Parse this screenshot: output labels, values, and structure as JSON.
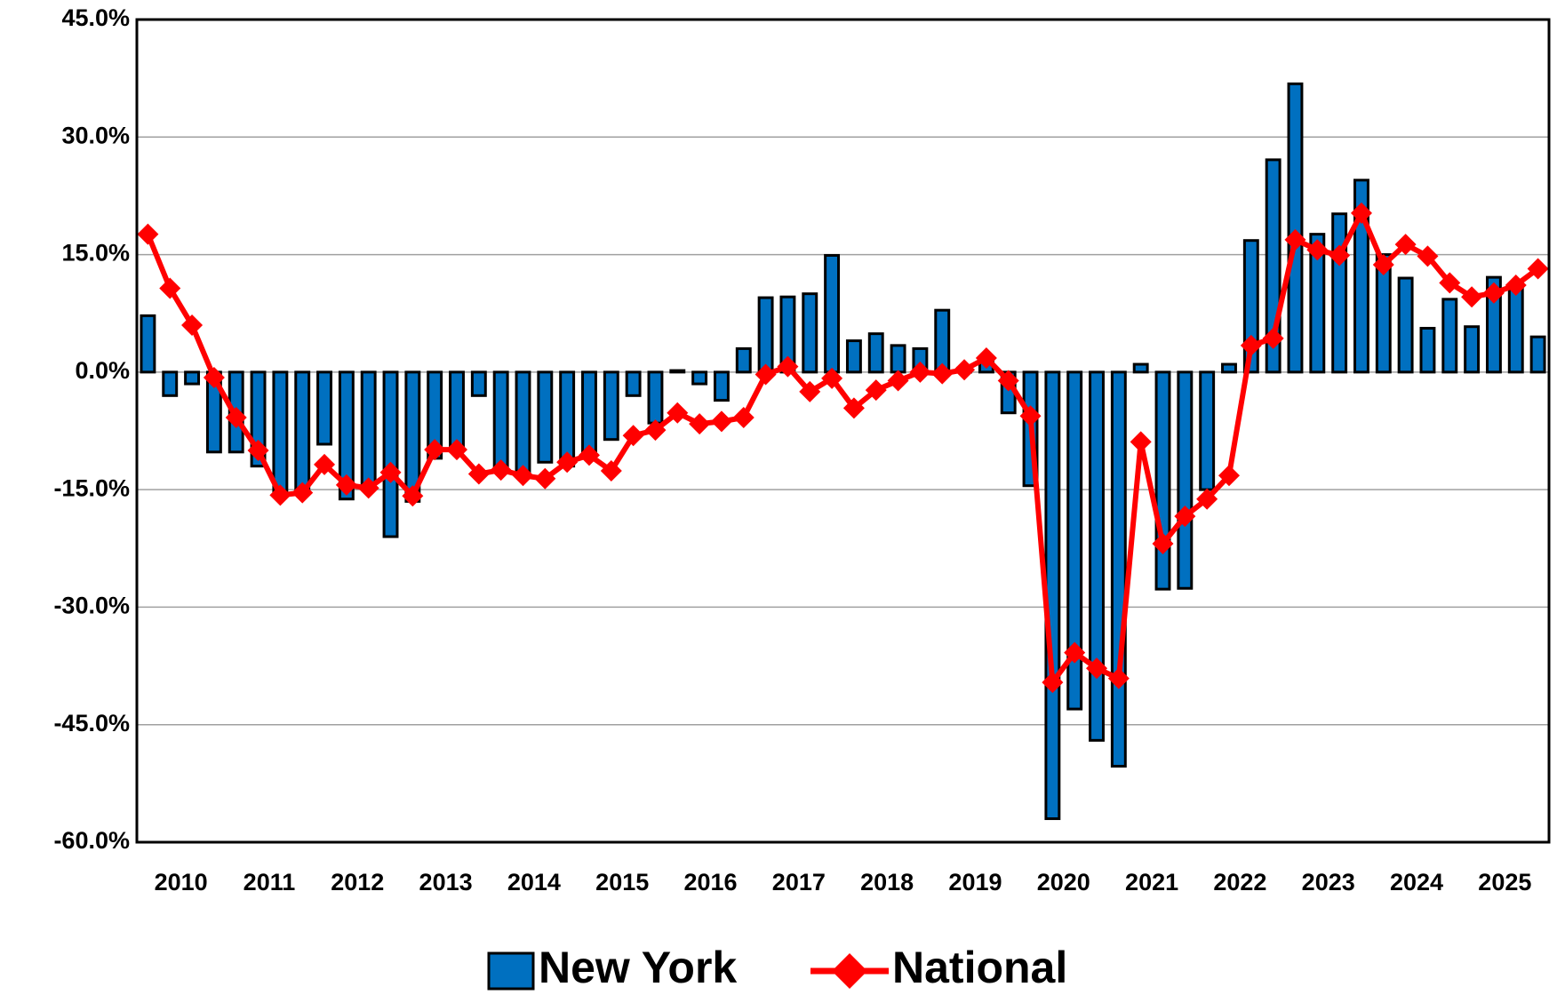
{
  "chart_data": {
    "type": "bar_line",
    "categories": [
      "2010",
      null,
      null,
      null,
      "2011",
      null,
      null,
      null,
      "2012",
      null,
      null,
      null,
      "2013",
      null,
      null,
      null,
      "2014",
      null,
      null,
      null,
      "2015",
      null,
      null,
      null,
      "2016",
      null,
      null,
      null,
      "2017",
      null,
      null,
      null,
      "2018",
      null,
      null,
      null,
      "2019",
      null,
      null,
      null,
      "2020",
      null,
      null,
      null,
      "2021",
      null,
      null,
      null,
      "2022",
      null,
      null,
      null,
      "2023",
      null,
      null,
      null,
      "2024",
      null,
      null,
      null,
      "2025",
      null,
      null,
      null
    ],
    "series": [
      {
        "name": "New York",
        "type": "bar",
        "color": "#0070c0",
        "values": [
          7.2,
          -3,
          -1.5,
          -10.2,
          -10.2,
          -12,
          -15.5,
          -15,
          -9.2,
          -16.2,
          -14.5,
          -21,
          -16.5,
          -11,
          -10,
          -3,
          -12,
          -13,
          -11.5,
          -12,
          -11,
          -8.6,
          -3,
          -6.5,
          0.2,
          -1.5,
          -3.6,
          3,
          9.5,
          9.6,
          10,
          14.9,
          4,
          4.9,
          3.4,
          3,
          7.9,
          0.5,
          1.5,
          -5.2,
          -14.5,
          -57,
          -43,
          -47,
          -50.3,
          1,
          -27.7,
          -27.6,
          -15,
          1,
          16.8,
          27.1,
          36.8,
          17.6,
          20.2,
          24.5,
          15,
          12,
          5.6,
          9.3,
          5.8,
          12.1,
          11,
          4.5
        ]
      },
      {
        "name": "National",
        "type": "line",
        "color": "#ff0000",
        "values": [
          17.6,
          10.7,
          6,
          -0.7,
          -5.8,
          -10,
          -15.7,
          -15.4,
          -11.8,
          -14.4,
          -14.8,
          -12.8,
          -15.8,
          -9.9,
          -9.9,
          -13,
          -12.5,
          -13.2,
          -13.6,
          -11.5,
          -10.6,
          -12.6,
          -8.1,
          -7.4,
          -5.2,
          -6.6,
          -6.3,
          -5.8,
          -0.3,
          0.7,
          -2.5,
          -0.8,
          -4.6,
          -2.3,
          -1.1,
          0,
          -0.2,
          0.3,
          1.8,
          -1.1,
          -5.6,
          -39.6,
          -35.8,
          -37.8,
          -39.1,
          -8.9,
          -21.9,
          -18.4,
          -16.2,
          -13.2,
          3.4,
          4.3,
          16.9,
          15.6,
          14.9,
          20.3,
          13.7,
          16.3,
          14.8,
          11.4,
          9.6,
          10.1,
          11.1,
          13.2
        ]
      }
    ],
    "ylim": [
      -60,
      45
    ],
    "yticks": [
      {
        "value": -60,
        "label": "-60.0%"
      },
      {
        "value": -45,
        "label": "-45.0%"
      },
      {
        "value": -30,
        "label": "-30.0%"
      },
      {
        "value": -15,
        "label": "-15.0%"
      },
      {
        "value": 0,
        "label": "0.0%"
      },
      {
        "value": 15,
        "label": "15.0%"
      },
      {
        "value": 30,
        "label": "30.0%"
      },
      {
        "value": 45,
        "label": "45.0%"
      }
    ],
    "grid": true,
    "legend": "bottom"
  }
}
